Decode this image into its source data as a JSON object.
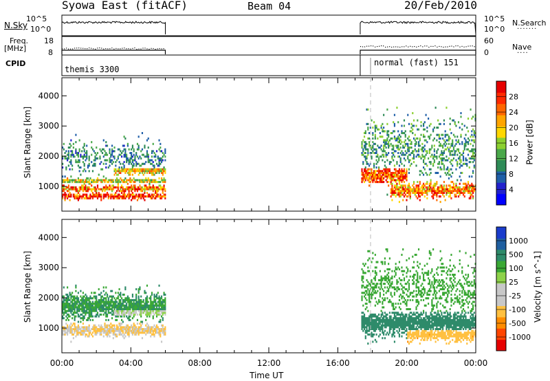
{
  "header": {
    "title": "Syowa East (fitACF)",
    "beam": "Beam 04",
    "date": "20/Feb/2010"
  },
  "panels": {
    "nsky": {
      "label": "N.Sky",
      "ticks": [
        "10^5",
        "10^0"
      ],
      "right_label": "N.Search",
      "right_ticks": [
        "10^5",
        "10^0"
      ]
    },
    "freq": {
      "label_line1": "Freq.",
      "label_line2": "[MHz]",
      "ticks": [
        "18",
        "8"
      ],
      "right_label": "Nave",
      "right_ticks": [
        "60",
        "0"
      ]
    },
    "cpid": {
      "label": "CPID",
      "segments": [
        {
          "name": "themis 3300",
          "start_h": 0.0,
          "end_h": 6.0
        },
        {
          "name": "normal (fast) 151",
          "start_h": 17.3,
          "end_h": 24.0
        }
      ]
    }
  },
  "colors": {
    "power": [
      "#0000ff",
      "#2222cc",
      "#1f5fa8",
      "#2e8b57",
      "#4aa84a",
      "#8cd030",
      "#ffd700",
      "#ffa500",
      "#ff6600",
      "#ff2a00",
      "#e60000"
    ],
    "velocity": [
      "#e60000",
      "#ff4500",
      "#ff8c00",
      "#ffc040",
      "#c8c8c8",
      "#c8c8c8",
      "#8ed24a",
      "#3aa835",
      "#2e8b6a",
      "#1f5fa0",
      "#1a3ccc"
    ]
  },
  "chart_data": [
    {
      "type": "heatmap",
      "name": "power",
      "ylabel": "Slant Range [km]",
      "xlabel": "Time UT",
      "xlim": [
        0,
        24
      ],
      "ylim": [
        180,
        4600
      ],
      "yticks": [
        1000,
        2000,
        3000,
        4000
      ],
      "xticks": [
        "00:00",
        "04:00",
        "08:00",
        "12:00",
        "16:00",
        "20:00",
        "00:00"
      ],
      "colorbar": {
        "label": "Power [dB]",
        "range": [
          0,
          32
        ],
        "ticks": [
          4,
          8,
          12,
          16,
          20,
          24,
          28
        ]
      },
      "regions": [
        {
          "t0": 0.0,
          "t1": 6.0,
          "r_center": 650,
          "r_width": 120,
          "level": 30
        },
        {
          "t0": 0.0,
          "t1": 6.0,
          "r_center": 900,
          "r_width": 130,
          "level": 25
        },
        {
          "t0": 0.0,
          "t1": 6.0,
          "r_center": 1150,
          "r_width": 100,
          "level": 18
        },
        {
          "t0": 3.0,
          "t1": 6.0,
          "r_center": 1500,
          "r_width": 180,
          "level": 20
        },
        {
          "t0": 0.0,
          "t1": 6.0,
          "r_center": 1900,
          "r_width": 600,
          "level": 9
        },
        {
          "t0": 17.3,
          "t1": 20.0,
          "r_center": 1350,
          "r_width": 350,
          "level": 27
        },
        {
          "t0": 19.0,
          "t1": 24.0,
          "r_center": 850,
          "r_width": 300,
          "level": 24
        },
        {
          "t0": 17.3,
          "t1": 24.0,
          "r_center": 2200,
          "r_width": 1100,
          "level": 11
        }
      ]
    },
    {
      "type": "heatmap",
      "name": "velocity",
      "ylabel": "Slant Range [km]",
      "xlabel": "Time UT",
      "xlim": [
        0,
        24
      ],
      "ylim": [
        180,
        4600
      ],
      "yticks": [
        1000,
        2000,
        3000,
        4000
      ],
      "xticks": [
        "00:00",
        "04:00",
        "08:00",
        "12:00",
        "16:00",
        "20:00",
        "00:00"
      ],
      "colorbar": {
        "label": "Velocity [m s^-1]",
        "ticks": [
          "1000",
          "500",
          "100",
          "25",
          "-25",
          "-100",
          "-500",
          "-1000"
        ]
      },
      "regions": [
        {
          "t0": 0.0,
          "t1": 6.0,
          "r_center": 900,
          "r_width": 250,
          "level": -100
        },
        {
          "t0": 3.0,
          "t1": 6.0,
          "r_center": 1500,
          "r_width": 200,
          "level": 0
        },
        {
          "t0": 0.0,
          "t1": 6.0,
          "r_center": 1700,
          "r_width": 500,
          "level": 100
        },
        {
          "t0": 17.3,
          "t1": 24.0,
          "r_center": 1150,
          "r_width": 500,
          "level": 300
        },
        {
          "t0": 20.0,
          "t1": 24.0,
          "r_center": 750,
          "r_width": 250,
          "level": -400
        },
        {
          "t0": 17.3,
          "t1": 24.0,
          "r_center": 2300,
          "r_width": 1100,
          "level": 50
        }
      ]
    }
  ]
}
